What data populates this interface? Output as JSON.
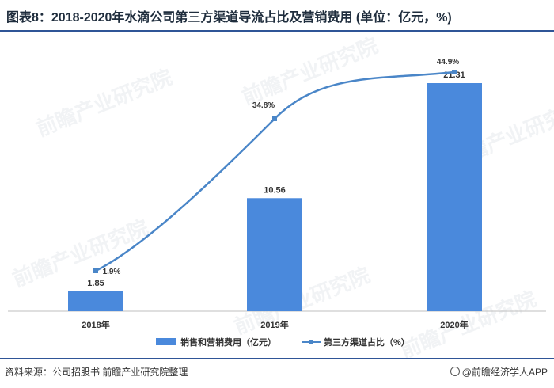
{
  "title": "图表8：2018-2020年水滴公司第三方渠道导流占比及营销费用 (单位：亿元，%)",
  "source": "资料来源：公司招股书 前瞻产业研究院整理",
  "brand": "@前瞻经济学人APP",
  "watermark": "前瞻产业研究院",
  "colors": {
    "bar": "#4a89dc",
    "line": "#4a86c8",
    "title_rule": "#2f5597"
  },
  "chart_data": {
    "type": "bar",
    "categories": [
      "2018年",
      "2019年",
      "2020年"
    ],
    "series": [
      {
        "name": "销售和营销费用（亿元）",
        "type": "bar",
        "values": [
          1.85,
          10.56,
          21.31
        ],
        "labels": [
          "1.85",
          "10.56",
          "21.31"
        ]
      },
      {
        "name": "第三方渠道占比（%）",
        "type": "line",
        "values": [
          1.9,
          34.8,
          44.9
        ],
        "labels": [
          "1.9%",
          "34.8%",
          "44.9%"
        ]
      }
    ],
    "legend": "bottom",
    "grid": false
  }
}
